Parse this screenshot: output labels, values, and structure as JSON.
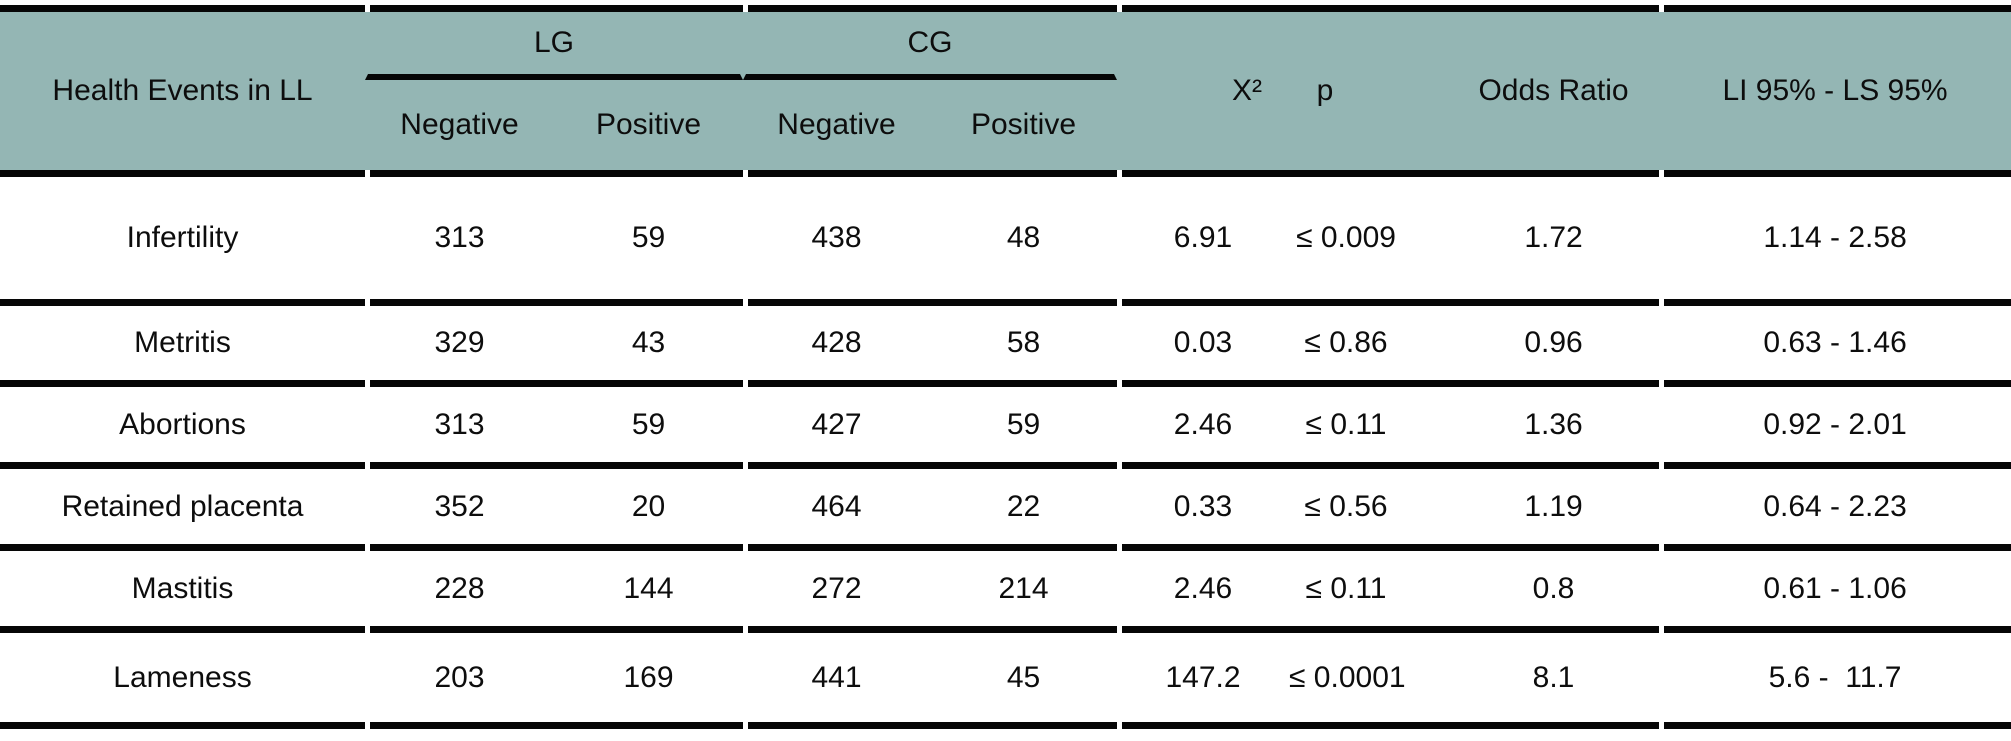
{
  "header": {
    "health_events": "Health Events in LL",
    "lg": "LG",
    "cg": "CG",
    "lg_negative": "Negative",
    "lg_positive": "Positive",
    "cg_negative": "Negative",
    "cg_positive": "Positive",
    "chi_square": "X²",
    "p": "p",
    "odds_ratio": "Odds Ratio",
    "ci": "LI 95% - LS 95%"
  },
  "rows": [
    {
      "event": "Infertility",
      "lg_negative": "313",
      "lg_positive": "59",
      "cg_negative": "438",
      "cg_positive": "48",
      "chi_square": "6.91",
      "p": "≤ 0.009",
      "odds_ratio": "1.72",
      "ci": "1.14 - 2.58"
    },
    {
      "event": "Metritis",
      "lg_negative": "329",
      "lg_positive": "43",
      "cg_negative": "428",
      "cg_positive": "58",
      "chi_square": "0.03",
      "p": "≤ 0.86",
      "odds_ratio": "0.96",
      "ci": "0.63 - 1.46"
    },
    {
      "event": "Abortions",
      "lg_negative": "313",
      "lg_positive": "59",
      "cg_negative": "427",
      "cg_positive": "59",
      "chi_square": "2.46",
      "p": "≤ 0.11",
      "odds_ratio": "1.36",
      "ci": "0.92 - 2.01"
    },
    {
      "event": "Retained placenta",
      "lg_negative": "352",
      "lg_positive": "20",
      "cg_negative": "464",
      "cg_positive": "22",
      "chi_square": "0.33",
      "p": "≤ 0.56",
      "odds_ratio": "1.19",
      "ci": "0.64 - 2.23"
    },
    {
      "event": "Mastitis",
      "lg_negative": "228",
      "lg_positive": "144",
      "cg_negative": "272",
      "cg_positive": "214",
      "chi_square": "2.46",
      "p": "≤ 0.11",
      "odds_ratio": "0.8",
      "ci": "0.61 - 1.06"
    },
    {
      "event": "Lameness",
      "lg_negative": "203",
      "lg_positive": "169",
      "cg_negative": "441",
      "cg_positive": "45",
      "chi_square": "147.2",
      "p": "≤ 0.0001",
      "odds_ratio": "8.1",
      "ci": "5.6 -  11.7"
    }
  ],
  "colors": {
    "header_bg": "#94b6b4",
    "rule": "#060606",
    "text": "#0d0d0d",
    "background": "#ffffff"
  }
}
